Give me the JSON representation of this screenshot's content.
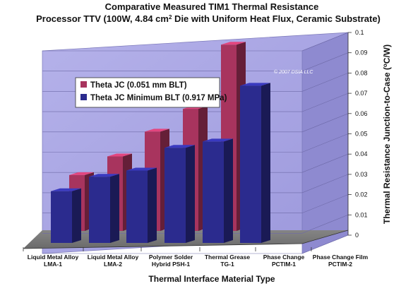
{
  "chart_data": {
    "type": "bar",
    "title_line1": "Comparative Measured TIM1 Thermal Resistance",
    "title_line2_pre": "Processor TTV (100W, 4.84 cm",
    "title_line2_sup": "2",
    "title_line2_post": " Die with Uniform Heat Flux, Ceramic Substrate)",
    "xlabel": "Thermal Interface Material Type",
    "ylabel_pre": "Thermal Resistance Junction-to-Case (",
    "ylabel_sup": "o",
    "ylabel_post": "C/W)",
    "ylim": [
      0,
      0.1
    ],
    "yticks": [
      "0",
      "0.01",
      "0.02",
      "0.03",
      "0.04",
      "0.05",
      "0.06",
      "0.07",
      "0.08",
      "0.09",
      "0.1"
    ],
    "categories": [
      [
        "Liquid Metal Alloy",
        "LMA-1"
      ],
      [
        "Liquid Metal Alloy",
        "LMA-2"
      ],
      [
        "Polymer Solder",
        "Hybrid PSH-1"
      ],
      [
        "Thermal Grease",
        "TG-1"
      ],
      [
        "Phase Change",
        "PCTIM-1"
      ],
      [
        "Phase Change Film",
        "PCTIM-2"
      ]
    ],
    "series": [
      {
        "name": "Theta JC (0.051 mm BLT)",
        "color": "#a8345e",
        "values": [
          0.027,
          0.036,
          0.048,
          0.059,
          0.09,
          null
        ]
      },
      {
        "name": "Theta JC Minimum BLT (0.917 MPa)",
        "color": "#2b2b8e",
        "values": [
          0.025,
          0.032,
          0.035,
          0.046,
          0.049,
          0.076
        ]
      }
    ],
    "legend_position": "top-left inside plot",
    "grid": true,
    "copyright": "© 2007 DSIA LLC"
  }
}
